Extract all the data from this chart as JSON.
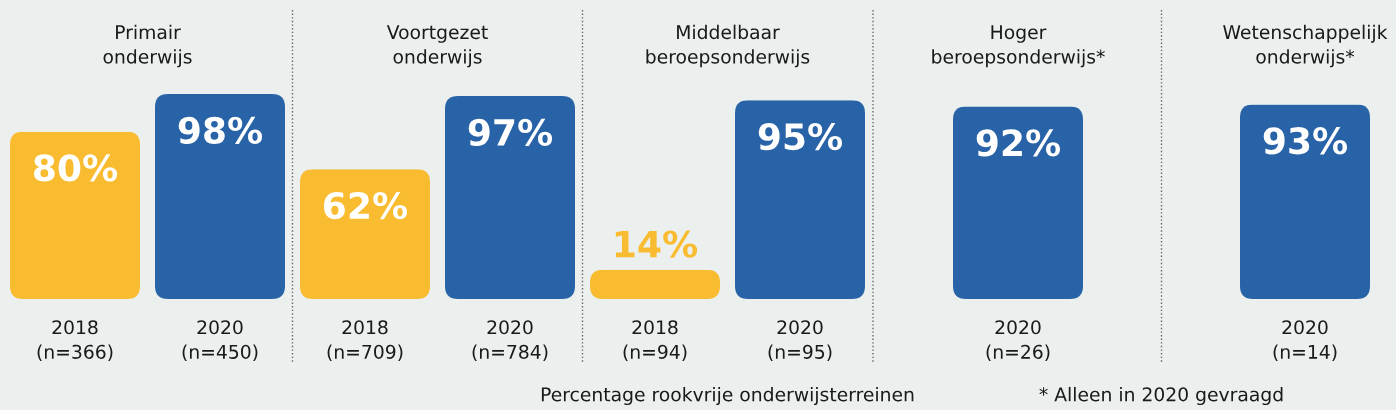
{
  "chart_data": [
    {
      "type": "bar",
      "title": "Primair\nonderwijs",
      "categories": [
        "2018\n(n=366)",
        "2020\n(n=450)"
      ],
      "values": [
        80,
        98
      ],
      "colors": [
        "#f9bb2f",
        "#2863a8"
      ],
      "value_labels": [
        "80%",
        "98%"
      ],
      "tick_labels": "x"
    },
    {
      "type": "bar",
      "title": "Voortgezet\nonderwijs",
      "categories": [
        "2018\n(n=709)",
        "2020\n(n=784)"
      ],
      "values": [
        62,
        97
      ],
      "colors": [
        "#f9bb2f",
        "#2863a8"
      ],
      "value_labels": [
        "62%",
        "97%"
      ],
      "tick_labels": "x"
    },
    {
      "type": "bar",
      "title": "Middelbaar\nberoepsonderwijs",
      "categories": [
        "2018\n(n=94)",
        "2020\n(n=95)"
      ],
      "values": [
        14,
        95
      ],
      "colors": [
        "#f9bb2f",
        "#2863a8"
      ],
      "value_labels": [
        "14%",
        "95%"
      ],
      "tick_labels": "x",
      "annotations": [
        "Percentage rookvrije onderwijsterreinen"
      ]
    },
    {
      "type": "bar",
      "categories": [
        "2020\n(n=26)",
        "2020\n(n=14)"
      ],
      "values": [
        92,
        93
      ],
      "colors": [
        "#2863a8",
        "#2863a8"
      ],
      "value_labels": [
        "92%",
        "93%"
      ],
      "tick_labels": "x",
      "annotations": [
        "Hoger\nberoepsonderwijs*",
        "Wetenschappelijk\nonderwijs*",
        "* Alleen in 2020 gevraagd"
      ]
    }
  ]
}
